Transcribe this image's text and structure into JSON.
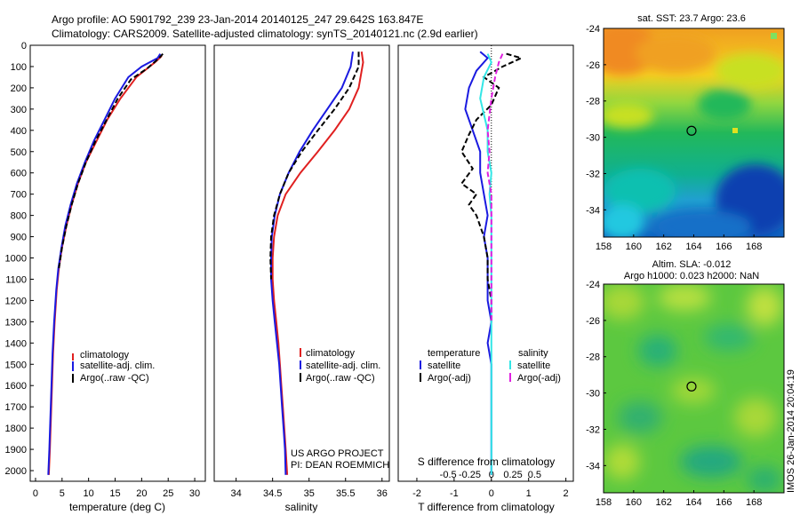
{
  "header": {
    "line1": "Argo profile: AO 5901792_239 23-Jan-2014 20140125_247 29.642S 163.847E",
    "line2": "Climatology: CARS2009. Satellite-adjusted climatology: synTS_20140121.nc (2.9d earlier)"
  },
  "colors": {
    "climatology": "#e02020",
    "satellite": "#1a1ae0",
    "argo": "#000000",
    "salinity_satellite": "#33e6e6",
    "salinity_argo": "#e020e0"
  },
  "chart_data": [
    {
      "type": "line",
      "panel": "temperature",
      "xlabel": "temperature (deg C)",
      "ylabel": "",
      "xlim": [
        -1,
        32
      ],
      "ylim": [
        2050,
        0
      ],
      "xticks": [
        "0",
        "5",
        "10",
        "15",
        "20",
        "25",
        "30"
      ],
      "yticks": [
        "0",
        "100",
        "200",
        "300",
        "400",
        "500",
        "600",
        "700",
        "800",
        "900",
        "1000",
        "1100",
        "1200",
        "1300",
        "1400",
        "1500",
        "1600",
        "1700",
        "1800",
        "1900",
        "2000"
      ],
      "legend": [
        "climatology",
        "satellite-adj. clim.",
        "Argo(..raw -QC)"
      ],
      "series": [
        {
          "name": "climatology",
          "style": "solid",
          "color": "#e02020",
          "points": [
            [
              23.8,
              50
            ],
            [
              22.5,
              80
            ],
            [
              19,
              150
            ],
            [
              16,
              250
            ],
            [
              13.5,
              350
            ],
            [
              11.5,
              450
            ],
            [
              9.5,
              550
            ],
            [
              8,
              650
            ],
            [
              6.8,
              750
            ],
            [
              5.8,
              850
            ],
            [
              5,
              950
            ],
            [
              4.4,
              1050
            ],
            [
              4,
              1150
            ],
            [
              3.6,
              1300
            ],
            [
              3.3,
              1450
            ],
            [
              3.1,
              1600
            ],
            [
              2.9,
              1750
            ],
            [
              2.7,
              1900
            ],
            [
              2.5,
              2020
            ]
          ]
        },
        {
          "name": "satellite-adj. clim.",
          "style": "solid",
          "color": "#1a1ae0",
          "points": [
            [
              23.5,
              40
            ],
            [
              23,
              60
            ],
            [
              20,
              100
            ],
            [
              17.5,
              150
            ],
            [
              15,
              250
            ],
            [
              13,
              350
            ],
            [
              11,
              450
            ],
            [
              9.3,
              550
            ],
            [
              7.8,
              650
            ],
            [
              6.6,
              750
            ],
            [
              5.6,
              850
            ],
            [
              4.9,
              950
            ],
            [
              4.3,
              1050
            ],
            [
              3.9,
              1150
            ],
            [
              3.5,
              1300
            ],
            [
              3.2,
              1450
            ],
            [
              3,
              1600
            ],
            [
              2.8,
              1750
            ],
            [
              2.6,
              1900
            ],
            [
              2.4,
              2020
            ]
          ]
        },
        {
          "name": "Argo(..raw -QC)",
          "style": "dashed",
          "color": "#000000",
          "points": [
            [
              24,
              40
            ],
            [
              23.3,
              60
            ],
            [
              21,
              110
            ],
            [
              18,
              160
            ],
            [
              15.5,
              250
            ],
            [
              13.4,
              350
            ],
            [
              11.3,
              450
            ],
            [
              9.5,
              550
            ],
            [
              8,
              650
            ],
            [
              6.8,
              750
            ],
            [
              5.8,
              850
            ],
            [
              5,
              950
            ],
            [
              4.4,
              1050
            ]
          ]
        }
      ]
    },
    {
      "type": "line",
      "panel": "salinity",
      "xlabel": "salinity",
      "xlim": [
        33.7,
        36.1
      ],
      "ylim": [
        2050,
        0
      ],
      "xticks": [
        "34",
        "34.5",
        "35",
        "35.5",
        "36"
      ],
      "legend": [
        "climatology",
        "satellite-adj. clim.",
        "Argo(..raw -QC)"
      ],
      "annotation": [
        "US ARGO PROJECT",
        "PI: DEAN ROEMMICH"
      ],
      "series": [
        {
          "name": "climatology",
          "style": "solid",
          "color": "#e02020",
          "points": [
            [
              35.72,
              30
            ],
            [
              35.74,
              80
            ],
            [
              35.68,
              200
            ],
            [
              35.55,
              300
            ],
            [
              35.35,
              400
            ],
            [
              35.12,
              500
            ],
            [
              34.88,
              600
            ],
            [
              34.68,
              700
            ],
            [
              34.57,
              800
            ],
            [
              34.52,
              900
            ],
            [
              34.5,
              1000
            ],
            [
              34.5,
              1100
            ],
            [
              34.52,
              1200
            ],
            [
              34.55,
              1300
            ],
            [
              34.58,
              1400
            ],
            [
              34.6,
              1500
            ],
            [
              34.62,
              1600
            ],
            [
              34.64,
              1700
            ],
            [
              34.66,
              1800
            ],
            [
              34.68,
              1900
            ],
            [
              34.7,
              2020
            ]
          ]
        },
        {
          "name": "satellite-adj. clim.",
          "style": "solid",
          "color": "#1a1ae0",
          "points": [
            [
              35.6,
              30
            ],
            [
              35.57,
              100
            ],
            [
              35.45,
              200
            ],
            [
              35.25,
              300
            ],
            [
              35.05,
              400
            ],
            [
              34.87,
              500
            ],
            [
              34.72,
              600
            ],
            [
              34.6,
              700
            ],
            [
              34.53,
              800
            ],
            [
              34.49,
              900
            ],
            [
              34.48,
              1000
            ],
            [
              34.48,
              1100
            ],
            [
              34.5,
              1200
            ],
            [
              34.53,
              1300
            ],
            [
              34.56,
              1400
            ],
            [
              34.59,
              1500
            ],
            [
              34.61,
              1600
            ],
            [
              34.63,
              1700
            ],
            [
              34.65,
              1800
            ],
            [
              34.67,
              1900
            ],
            [
              34.68,
              2020
            ]
          ]
        },
        {
          "name": "Argo(..raw -QC)",
          "style": "dashed",
          "color": "#000000",
          "points": [
            [
              35.68,
              30
            ],
            [
              35.68,
              100
            ],
            [
              35.55,
              200
            ],
            [
              35.35,
              300
            ],
            [
              35.12,
              400
            ],
            [
              34.9,
              500
            ],
            [
              34.72,
              600
            ],
            [
              34.6,
              700
            ],
            [
              34.52,
              800
            ],
            [
              34.48,
              900
            ],
            [
              34.47,
              1000
            ],
            [
              34.48,
              1100
            ]
          ]
        }
      ]
    },
    {
      "type": "line",
      "panel": "difference",
      "xlabel": "T difference from climatology",
      "xlabel_top": "S difference from climatology",
      "xlim": [
        -2.5,
        2.2
      ],
      "ylim": [
        2050,
        0
      ],
      "xticks": [
        "-2",
        "-1",
        "0",
        "1",
        "2"
      ],
      "xticks_top": [
        "-0.5",
        "-0.25",
        "0",
        "0.25",
        "0.5"
      ],
      "legend_headers": [
        "temperature",
        "salinity"
      ],
      "legend": [
        "satellite",
        "Argo(-adj)",
        "satellite",
        "Argo(-adj)"
      ],
      "series": [
        {
          "name": "satellite",
          "quantity": "temperature",
          "style": "solid",
          "color": "#1a1ae0",
          "points": [
            [
              -0.3,
              30
            ],
            [
              -0.1,
              60
            ],
            [
              -0.4,
              120
            ],
            [
              -0.6,
              200
            ],
            [
              -0.7,
              300
            ],
            [
              -0.5,
              400
            ],
            [
              -0.3,
              500
            ],
            [
              -0.3,
              600
            ],
            [
              -0.2,
              700
            ],
            [
              -0.1,
              800
            ],
            [
              -0.2,
              900
            ],
            [
              -0.1,
              1000
            ],
            [
              -0.1,
              1100
            ],
            [
              -0.1,
              1200
            ],
            [
              0,
              1300
            ],
            [
              -0.1,
              1400
            ],
            [
              0,
              1500
            ],
            [
              0,
              1600
            ],
            [
              0,
              1700
            ],
            [
              0,
              1800
            ],
            [
              0,
              1900
            ],
            [
              0,
              2020
            ]
          ]
        },
        {
          "name": "Argo(-adj)",
          "quantity": "temperature",
          "style": "dashed",
          "color": "#000000",
          "points": [
            [
              0.4,
              40
            ],
            [
              0.8,
              60
            ],
            [
              0.3,
              100
            ],
            [
              -0.2,
              150
            ],
            [
              0.2,
              200
            ],
            [
              0,
              280
            ],
            [
              -0.4,
              350
            ],
            [
              -0.6,
              420
            ],
            [
              -0.8,
              500
            ],
            [
              -0.5,
              580
            ],
            [
              -0.8,
              650
            ],
            [
              -0.4,
              700
            ],
            [
              -0.6,
              750
            ],
            [
              -0.4,
              800
            ],
            [
              -0.2,
              900
            ],
            [
              -0.1,
              1000
            ],
            [
              -0.1,
              1100
            ],
            [
              0,
              1200
            ],
            [
              0,
              1300
            ]
          ]
        },
        {
          "name": "satellite",
          "quantity": "salinity",
          "style": "solid",
          "color": "#33e6e6",
          "points": [
            [
              -0.1,
              40
            ],
            [
              0,
              80
            ],
            [
              -0.2,
              150
            ],
            [
              -0.3,
              250
            ],
            [
              -0.1,
              400
            ],
            [
              -0.1,
              500
            ],
            [
              0,
              600
            ],
            [
              -0.05,
              700
            ],
            [
              0,
              800
            ],
            [
              0,
              900
            ],
            [
              0,
              1000
            ],
            [
              0,
              1200
            ],
            [
              0,
              1400
            ],
            [
              0,
              1600
            ],
            [
              0,
              1800
            ],
            [
              0,
              2020
            ]
          ]
        },
        {
          "name": "Argo(-adj)",
          "quantity": "salinity",
          "style": "dashed",
          "color": "#e020e0",
          "points": [
            [
              0.3,
              40
            ],
            [
              0.2,
              80
            ],
            [
              0.1,
              150
            ],
            [
              0,
              250
            ],
            [
              -0.1,
              400
            ],
            [
              -0.05,
              500
            ],
            [
              -0.1,
              600
            ],
            [
              0,
              700
            ],
            [
              0,
              800
            ],
            [
              0,
              900
            ],
            [
              0,
              1000
            ],
            [
              0,
              1100
            ],
            [
              0,
              1200
            ],
            [
              0,
              1300
            ]
          ]
        }
      ]
    },
    {
      "type": "heatmap",
      "panel": "sst_map",
      "title": "sat. SST: 23.7 Argo: 23.6",
      "xlim": [
        158,
        170
      ],
      "ylim": [
        -35.5,
        -24
      ],
      "xticks": [
        "158",
        "160",
        "162",
        "164",
        "166",
        "168"
      ],
      "yticks": [
        "-24",
        "-26",
        "-28",
        "-30",
        "-32",
        "-34"
      ],
      "marker": [
        163.85,
        -29.64
      ]
    },
    {
      "type": "heatmap",
      "panel": "sla_map",
      "title": "Altim. SLA: -0.012",
      "subtitle": "Argo h1000: 0.023 h2000: NaN",
      "xlim": [
        158,
        170
      ],
      "ylim": [
        -35.5,
        -24
      ],
      "xticks": [
        "158",
        "160",
        "162",
        "164",
        "166",
        "168"
      ],
      "yticks": [
        "-24",
        "-26",
        "-28",
        "-30",
        "-32",
        "-34"
      ],
      "marker": [
        163.85,
        -29.64
      ]
    }
  ],
  "side_label": "IMOS 26-Jan-2014 20:04:19"
}
